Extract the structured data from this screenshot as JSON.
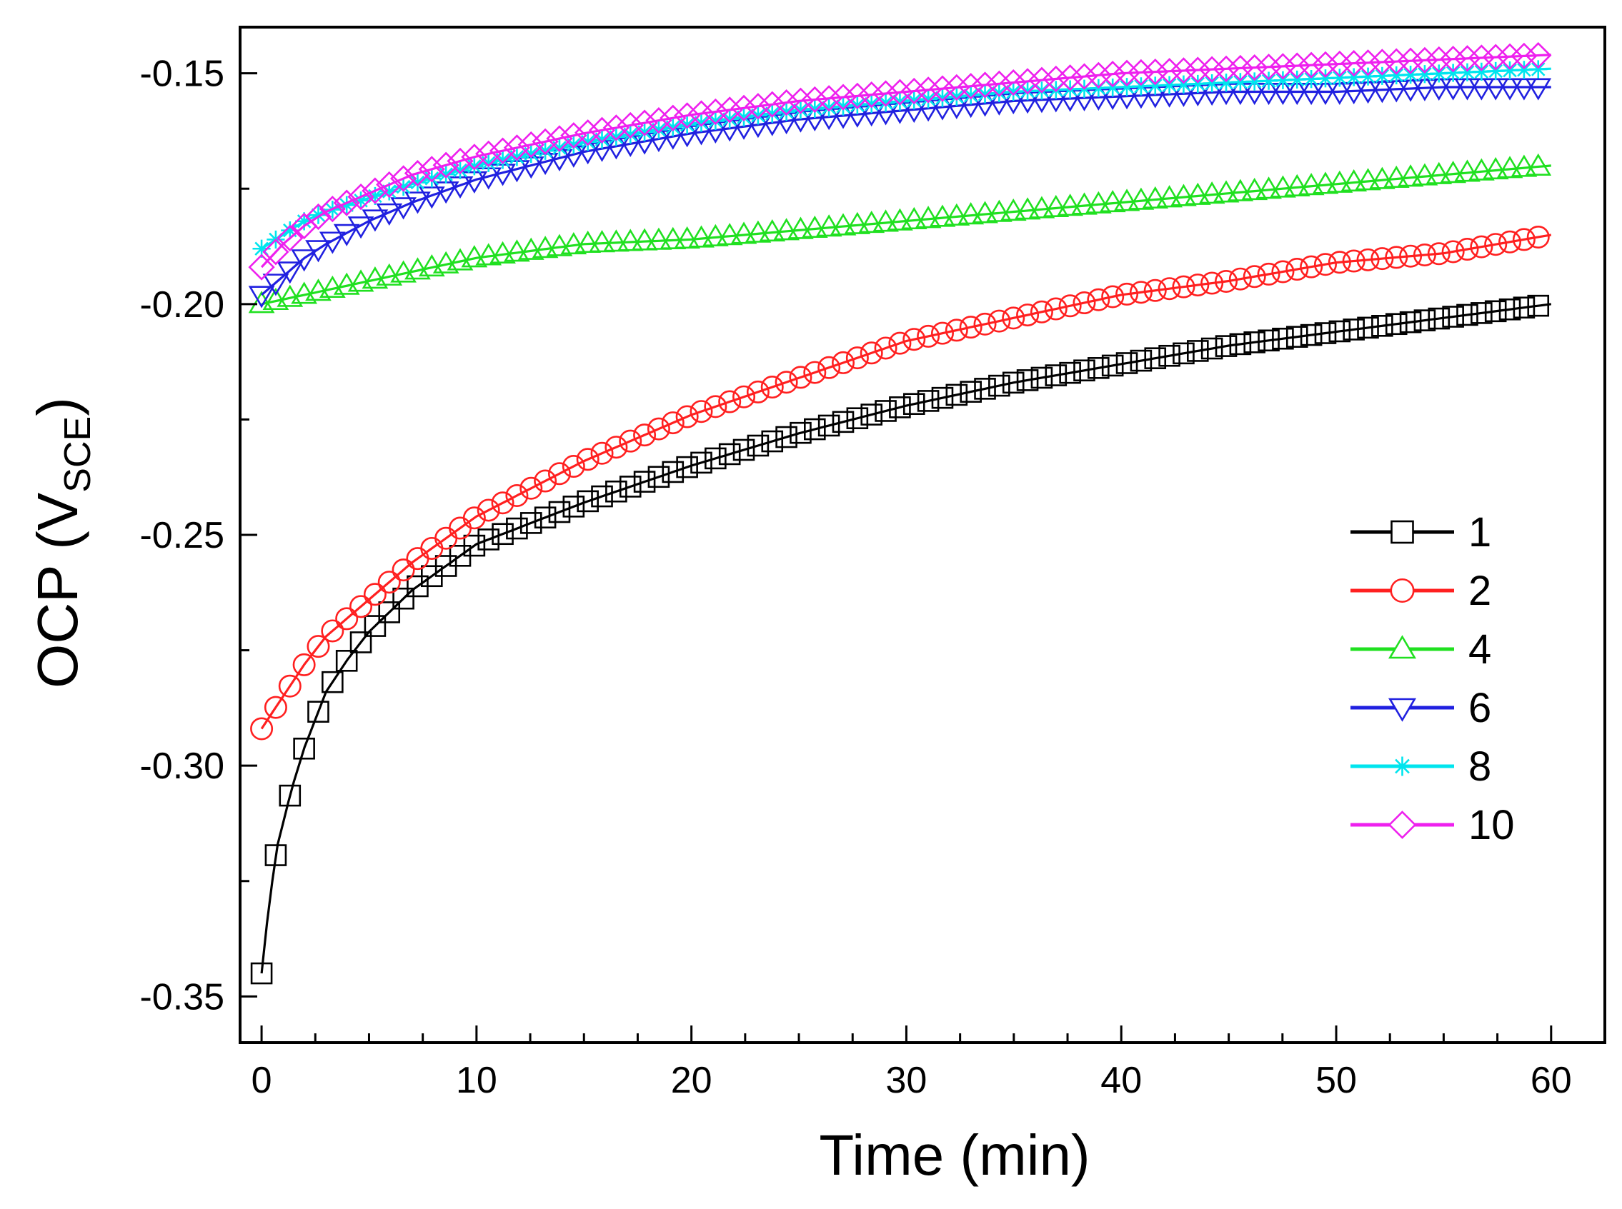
{
  "chart_data": {
    "type": "line",
    "title": "",
    "xlabel": "Time (min)",
    "ylabel_main": "OCP (V",
    "ylabel_sub": "SCE",
    "ylabel_close": ")",
    "xlim": [
      -1,
      62.5
    ],
    "ylim": [
      -0.36,
      -0.14
    ],
    "xticks": [
      0,
      10,
      20,
      30,
      40,
      50,
      60
    ],
    "xtick_labels": [
      "0",
      "10",
      "20",
      "30",
      "40",
      "50",
      "60"
    ],
    "yticks": [
      -0.35,
      -0.3,
      -0.25,
      -0.2,
      -0.15
    ],
    "ytick_labels": [
      "-0.35",
      "-0.30",
      "-0.25",
      "-0.20",
      "-0.15"
    ],
    "legend_position": "right-middle",
    "grid": false,
    "series": [
      {
        "name": "1",
        "color": "#000000",
        "marker": "square",
        "curve": {
          "t": [
            0,
            0.3,
            0.7,
            1.4,
            2,
            3,
            4,
            5,
            7,
            10,
            15,
            20,
            25,
            30,
            35,
            40,
            45,
            50,
            55,
            60
          ],
          "v": [
            -0.345,
            -0.332,
            -0.318,
            -0.305,
            -0.296,
            -0.284,
            -0.277,
            -0.271,
            -0.262,
            -0.252,
            -0.243,
            -0.235,
            -0.228,
            -0.222,
            -0.217,
            -0.213,
            -0.209,
            -0.206,
            -0.203,
            -0.2
          ]
        }
      },
      {
        "name": "2",
        "color": "#ff2020",
        "marker": "circle",
        "curve": {
          "t": [
            0,
            1,
            2,
            3,
            5,
            7,
            10,
            15,
            20,
            25,
            30,
            35,
            40,
            45,
            50,
            55,
            60
          ],
          "v": [
            -0.292,
            -0.285,
            -0.278,
            -0.272,
            -0.264,
            -0.256,
            -0.246,
            -0.234,
            -0.224,
            -0.216,
            -0.208,
            -0.203,
            -0.198,
            -0.195,
            -0.191,
            -0.189,
            -0.185
          ]
        }
      },
      {
        "name": "4",
        "color": "#20e020",
        "marker": "triangle-up",
        "curve": {
          "t": [
            0,
            2,
            5,
            8,
            10,
            15,
            20,
            25,
            30,
            35,
            40,
            45,
            50,
            55,
            60
          ],
          "v": [
            -0.2,
            -0.198,
            -0.195,
            -0.192,
            -0.19,
            -0.187,
            -0.186,
            -0.184,
            -0.182,
            -0.18,
            -0.178,
            -0.176,
            -0.174,
            -0.172,
            -0.17
          ]
        }
      },
      {
        "name": "6",
        "color": "#2020e0",
        "marker": "triangle-down",
        "curve": {
          "t": [
            0,
            1,
            2,
            3,
            5,
            7,
            10,
            15,
            20,
            25,
            30,
            35,
            40,
            45,
            50,
            55,
            60
          ],
          "v": [
            -0.198,
            -0.194,
            -0.19,
            -0.187,
            -0.182,
            -0.178,
            -0.173,
            -0.167,
            -0.163,
            -0.16,
            -0.158,
            -0.156,
            -0.155,
            -0.154,
            -0.154,
            -0.153,
            -0.153
          ]
        }
      },
      {
        "name": "8",
        "color": "#00e5ee",
        "marker": "asterisk",
        "curve": {
          "t": [
            0,
            1,
            2,
            3,
            5,
            7,
            10,
            15,
            20,
            25,
            30,
            35,
            40,
            45,
            50,
            55,
            60
          ],
          "v": [
            -0.188,
            -0.185,
            -0.182,
            -0.18,
            -0.177,
            -0.174,
            -0.17,
            -0.165,
            -0.161,
            -0.158,
            -0.156,
            -0.154,
            -0.153,
            -0.152,
            -0.151,
            -0.15,
            -0.149
          ]
        }
      },
      {
        "name": "10",
        "color": "#ee20ee",
        "marker": "diamond",
        "curve": {
          "t": [
            0,
            1,
            2,
            3,
            5,
            7,
            10,
            15,
            20,
            25,
            30,
            35,
            40,
            45,
            50,
            55,
            60
          ],
          "v": [
            -0.192,
            -0.187,
            -0.183,
            -0.18,
            -0.176,
            -0.172,
            -0.168,
            -0.163,
            -0.159,
            -0.156,
            -0.154,
            -0.152,
            -0.15,
            -0.149,
            -0.148,
            -0.147,
            -0.146
          ]
        }
      }
    ],
    "sampling": {
      "start": 0,
      "end": 59.4,
      "step": 0.66
    }
  }
}
